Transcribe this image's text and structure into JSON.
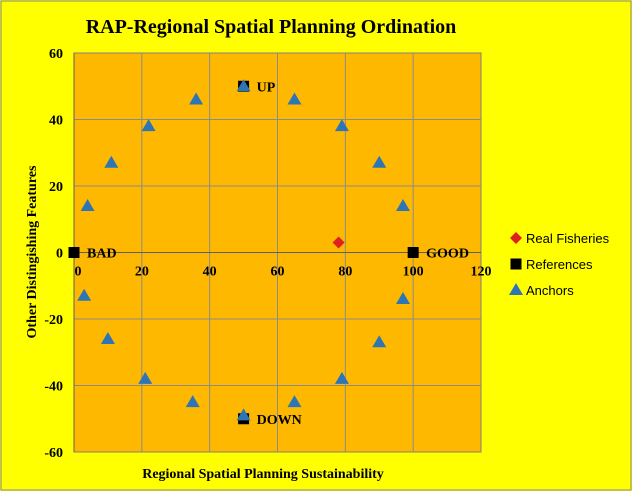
{
  "chart_data": {
    "type": "scatter",
    "title": "RAP-Regional Spatial Planning Ordination",
    "xlabel": "Regional Spatial Planning Sustainability",
    "ylabel": "Other Distingishing Features",
    "xlim": [
      0,
      120
    ],
    "ylim": [
      -60,
      60
    ],
    "xticks": [
      0,
      20,
      40,
      60,
      80,
      100,
      120
    ],
    "yticks": [
      -60,
      -40,
      -20,
      0,
      20,
      40,
      60
    ],
    "grid": true,
    "legend_position": "right",
    "series": [
      {
        "name": "Real Fisheries",
        "marker": "diamond",
        "color": "#e02020",
        "points": [
          {
            "x": 78,
            "y": 3
          }
        ]
      },
      {
        "name": "References",
        "marker": "square",
        "color": "#000000",
        "points": [
          {
            "x": 0,
            "y": 0,
            "label": "BAD"
          },
          {
            "x": 100,
            "y": 0,
            "label": "GOOD"
          },
          {
            "x": 50,
            "y": 50,
            "label": "UP"
          },
          {
            "x": 50,
            "y": -50,
            "label": "DOWN"
          }
        ]
      },
      {
        "name": "Anchors",
        "marker": "triangle",
        "color": "#2e75b6",
        "points": [
          {
            "x": 50,
            "y": 50
          },
          {
            "x": 65,
            "y": 46
          },
          {
            "x": 79,
            "y": 38
          },
          {
            "x": 90,
            "y": 27
          },
          {
            "x": 97,
            "y": 14
          },
          {
            "x": 97,
            "y": -14
          },
          {
            "x": 90,
            "y": -27
          },
          {
            "x": 79,
            "y": -38
          },
          {
            "x": 65,
            "y": -45
          },
          {
            "x": 50,
            "y": -49
          },
          {
            "x": 35,
            "y": -45
          },
          {
            "x": 21,
            "y": -38
          },
          {
            "x": 10,
            "y": -26
          },
          {
            "x": 3,
            "y": -13
          },
          {
            "x": 4,
            "y": 14
          },
          {
            "x": 11,
            "y": 27
          },
          {
            "x": 22,
            "y": 38
          },
          {
            "x": 36,
            "y": 46
          }
        ]
      }
    ]
  }
}
